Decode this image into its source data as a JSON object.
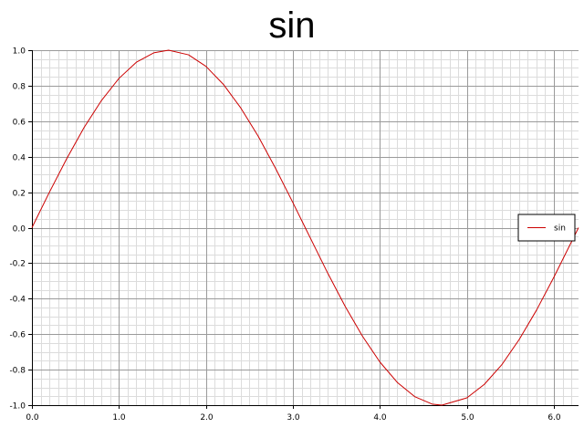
{
  "chart_data": {
    "type": "line",
    "title": "sin",
    "xlabel": "",
    "ylabel": "",
    "xlim": [
      0,
      6.2832
    ],
    "ylim": [
      -1.0,
      1.0
    ],
    "xticks": [
      0,
      1,
      2,
      3,
      4,
      5,
      6
    ],
    "xtick_labels": [
      "0.0",
      "1.0",
      "2.0",
      "3.0",
      "4.0",
      "5.0",
      "6.0"
    ],
    "yticks": [
      1.0,
      0.8,
      0.6,
      0.4,
      0.2,
      0.0,
      -0.2,
      -0.4,
      -0.6,
      -0.8,
      -1.0
    ],
    "ytick_labels": [
      "1.0",
      "0.8",
      "0.6",
      "0.4",
      "0.2",
      "0.0",
      "-0.2",
      "-0.4",
      "-0.6",
      "-0.8",
      "-1.0"
    ],
    "grid": true,
    "legend_position": "right",
    "series": [
      {
        "name": "sin",
        "color": "#cc0000",
        "x": [
          0,
          0.2,
          0.4,
          0.6,
          0.8,
          1.0,
          1.2,
          1.4,
          1.5708,
          1.8,
          2.0,
          2.2,
          2.4,
          2.6,
          2.8,
          3.0,
          3.1416,
          3.4,
          3.6,
          3.8,
          4.0,
          4.2,
          4.4,
          4.6,
          4.7124,
          5.0,
          5.2,
          5.4,
          5.6,
          5.8,
          6.0,
          6.2832
        ],
        "y": [
          0,
          0.199,
          0.389,
          0.565,
          0.717,
          0.841,
          0.932,
          0.985,
          1.0,
          0.974,
          0.909,
          0.808,
          0.675,
          0.516,
          0.335,
          0.141,
          0.0,
          -0.256,
          -0.443,
          -0.612,
          -0.757,
          -0.872,
          -0.952,
          -0.994,
          -1.0,
          -0.959,
          -0.883,
          -0.773,
          -0.631,
          -0.465,
          -0.279,
          0.0
        ]
      }
    ]
  }
}
